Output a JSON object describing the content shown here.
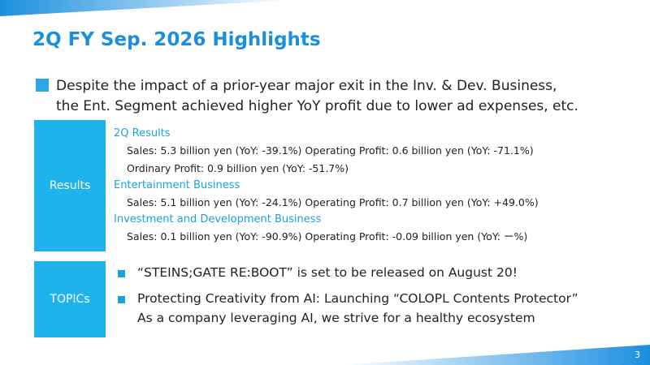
{
  "header": {
    "title": "2Q FY Sep. 2026 Highlights"
  },
  "summary": {
    "lines": [
      "Despite the impact of a prior-year major exit in the Inv. & Dev. Business,",
      "the Ent. Segment achieved higher YoY profit due to lower ad expenses, etc."
    ]
  },
  "results": {
    "label": "Results",
    "sections": [
      {
        "heading": "2Q Results",
        "lines": [
          "Sales: 5.3 billion yen (YoY: -39.1%) Operating Profit: 0.6 billion yen (YoY: -71.1%)",
          "Ordinary Profit: 0.9 billion yen (YoY: -51.7%)"
        ]
      },
      {
        "heading": "Entertainment Business",
        "lines": [
          "Sales: 5.1 billion yen (YoY: -24.1%) Operating Profit: 0.7 billion yen (YoY: +49.0%)"
        ]
      },
      {
        "heading": "Investment and Development Business",
        "lines": [
          "Sales: 0.1 billion yen (YoY: -90.9%) Operating Profit: -0.09 billion yen (YoY: ー%)"
        ]
      }
    ]
  },
  "topics": {
    "label": "TOPICs",
    "items": [
      {
        "lines": [
          "“STEINS;GATE RE:BOOT” is set to be released on August 20!"
        ]
      },
      {
        "lines": [
          "Protecting Creativity from AI: Launching “COLOPL Contents Protector”",
          "As a company leveraging AI, we strive for a healthy ecosystem"
        ]
      }
    ]
  },
  "footer": {
    "page": "3"
  }
}
